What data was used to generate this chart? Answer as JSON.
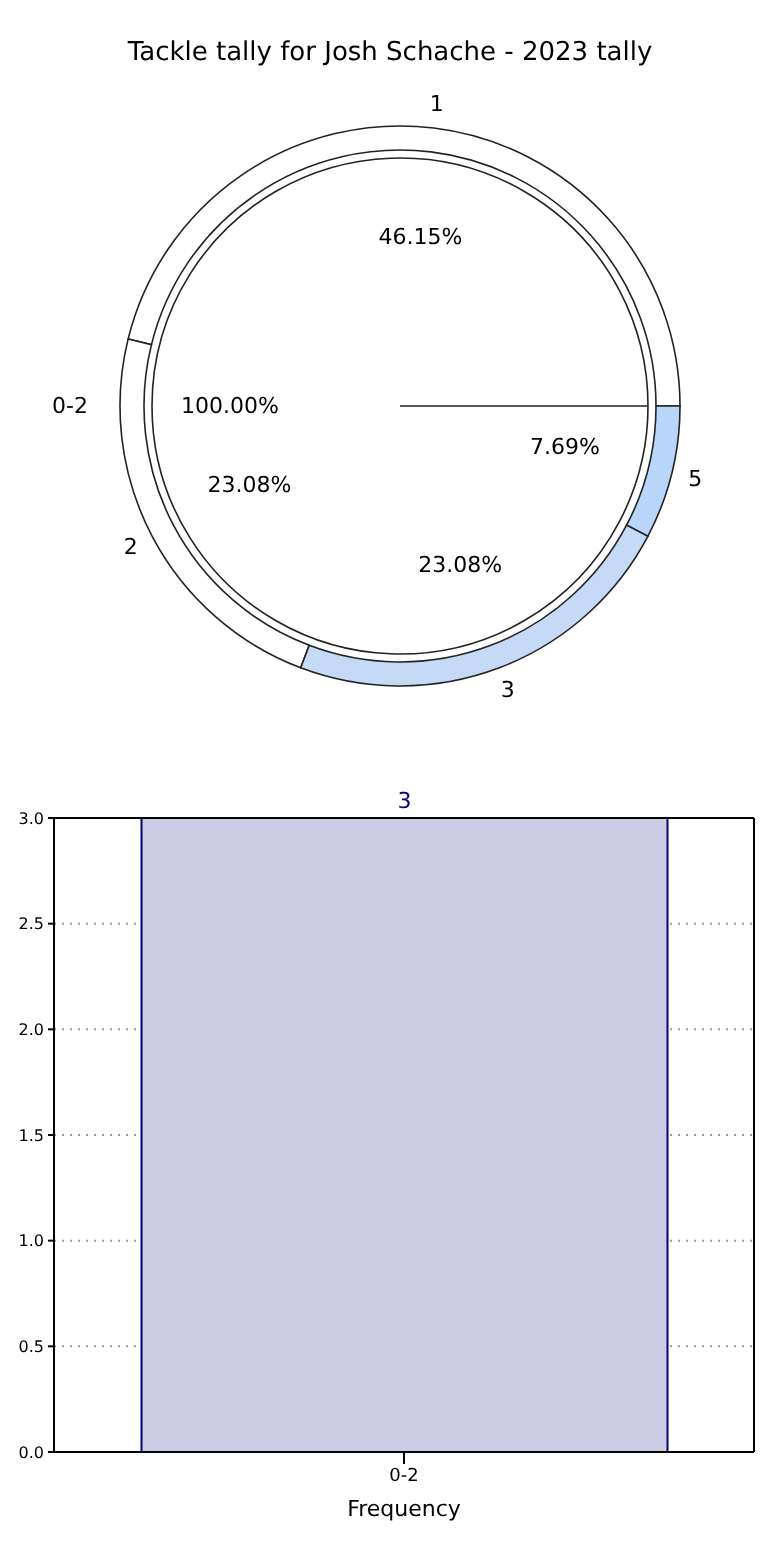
{
  "chart_data": [
    {
      "type": "donut",
      "title": "Tackle tally for Josh Schache - 2023 tally",
      "categories": [
        "1",
        "2",
        "3",
        "5"
      ],
      "values": [
        46.15,
        23.08,
        23.08,
        7.69
      ],
      "colors": [
        "#ffffff",
        "#ffffff",
        "#c5daf7",
        "#b8d5fa"
      ],
      "value_labels": [
        "46.15%",
        "23.08%",
        "23.08%",
        "7.69%"
      ]
    },
    {
      "type": "pie",
      "categories": [
        "0-2"
      ],
      "values": [
        100
      ],
      "colors": [
        "#ffffff"
      ],
      "value_labels": [
        "100.00%"
      ]
    },
    {
      "type": "bar",
      "xlabel": "Frequency",
      "categories": [
        "0-2"
      ],
      "values": [
        3
      ],
      "color": "#cbcce4",
      "data_labels": true,
      "ylim": [
        0,
        3
      ],
      "yticks": [
        {
          "value": 0,
          "label": "0.0"
        },
        {
          "value": 0.5,
          "label": "0.5"
        },
        {
          "value": 1,
          "label": "1.0"
        },
        {
          "value": 1.5,
          "label": "1.5"
        },
        {
          "value": 2,
          "label": "2.0"
        },
        {
          "value": 2.5,
          "label": "2.5"
        },
        {
          "value": 3,
          "label": "3.0"
        }
      ],
      "grid": true
    }
  ]
}
